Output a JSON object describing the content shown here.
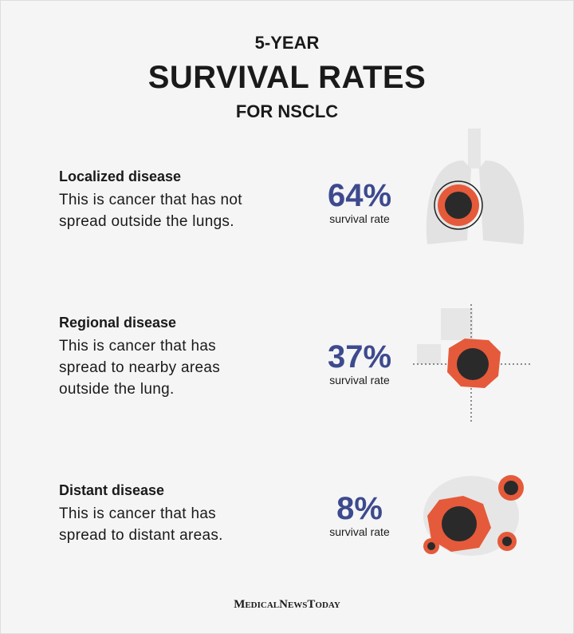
{
  "header": {
    "line1": "5-YEAR",
    "title": "SURVIVAL RATES",
    "line2": "FOR NSCLC"
  },
  "items": [
    {
      "heading": "Localized disease",
      "lines": [
        "This is cancer that has not",
        "spread outside the lungs."
      ],
      "rate": "64%",
      "rate_label": "survival rate"
    },
    {
      "heading": "Regional disease",
      "lines": [
        "This is cancer that has",
        "spread to nearby areas",
        "outside the lung."
      ],
      "rate": "37%",
      "rate_label": "survival rate"
    },
    {
      "heading": "Distant disease",
      "lines": [
        "This is cancer that has",
        "spread to distant areas."
      ],
      "rate": "8%",
      "rate_label": "survival rate"
    }
  ],
  "footer": {
    "brand": "MedicalNewsToday"
  }
}
